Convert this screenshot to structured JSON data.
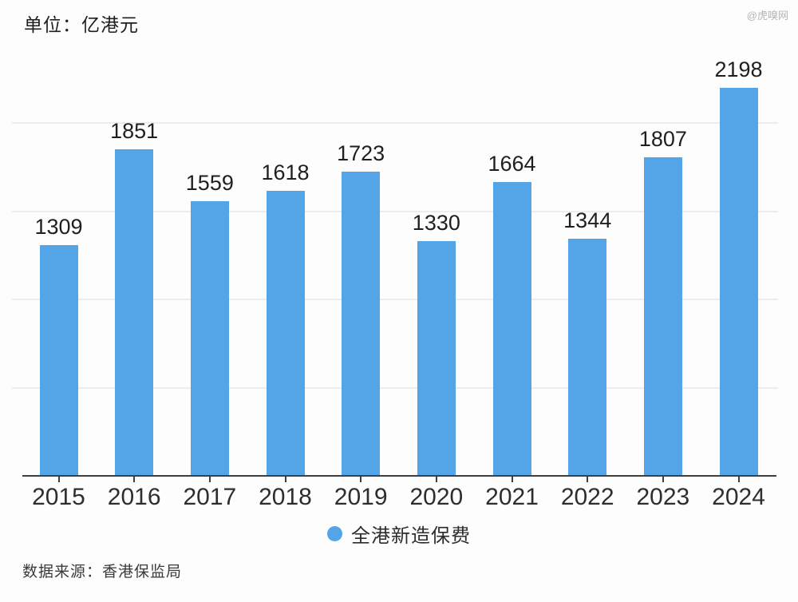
{
  "unit_label": "单位：亿港元",
  "watermark": "@虎嗅网",
  "source": "数据来源：香港保监局",
  "legend": {
    "label": "全港新造保费",
    "dot_color": "#54a5e8"
  },
  "colors": {
    "bar": "#54a5e8",
    "grid": "#ececec",
    "axis": "#3f3f3f",
    "value_label": "#1f1f1f",
    "year_label": "#2e2e2e"
  },
  "chart_data": {
    "type": "bar",
    "title": "",
    "xlabel": "",
    "ylabel": "亿港元",
    "categories": [
      "2015",
      "2016",
      "2017",
      "2018",
      "2019",
      "2020",
      "2021",
      "2022",
      "2023",
      "2024"
    ],
    "series": [
      {
        "name": "全港新造保费",
        "values": [
          1309,
          1851,
          1559,
          1618,
          1723,
          1330,
          1664,
          1344,
          1807,
          2198
        ]
      }
    ],
    "data_labels": true,
    "ylim": [
      0,
      2250
    ],
    "gridline_values": [
      500,
      1000,
      1500,
      2000
    ],
    "y_tick_labels_visible": false,
    "grid": true,
    "legend_position": "bottom"
  }
}
